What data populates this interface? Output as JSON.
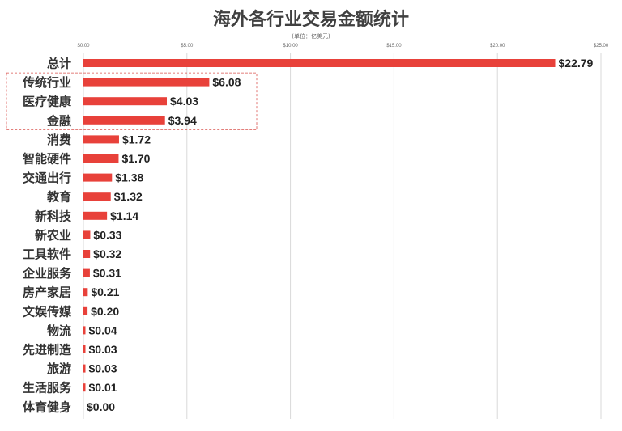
{
  "chart_data": {
    "type": "bar",
    "orientation": "horizontal",
    "title": "海外各行业交易金额统计",
    "subtitle": "(单位：亿美元)",
    "xlim": [
      0,
      25
    ],
    "x_ticks": [
      "$0.00",
      "$5.00",
      "$10.00",
      "$15.00",
      "$20.00",
      "$25.00"
    ],
    "grid": true,
    "bar_color": "#e8413a",
    "highlight_color": "#e8413a",
    "categories": [
      "总计",
      "传统行业",
      "医疗健康",
      "金融",
      "消费",
      "智能硬件",
      "交通出行",
      "教育",
      "新科技",
      "新农业",
      "工具软件",
      "企业服务",
      "房产家居",
      "文娱传媒",
      "物流",
      "先进制造",
      "旅游",
      "生活服务",
      "体育健身"
    ],
    "values": [
      22.79,
      6.08,
      4.03,
      3.94,
      1.72,
      1.7,
      1.38,
      1.32,
      1.14,
      0.33,
      0.32,
      0.31,
      0.21,
      0.2,
      0.04,
      0.03,
      0.03,
      0.01,
      0.0
    ],
    "value_labels": [
      "$22.79",
      "$6.08",
      "$4.03",
      "$3.94",
      "$1.72",
      "$1.70",
      "$1.38",
      "$1.32",
      "$1.14",
      "$0.33",
      "$0.32",
      "$0.31",
      "$0.21",
      "$0.20",
      "$0.04",
      "$0.03",
      "$0.03",
      "$0.01",
      "$0.00"
    ],
    "highlighted_labels": [
      "体育健身"
    ],
    "boxed_categories": [
      "传统行业",
      "医疗健康",
      "金融"
    ]
  }
}
